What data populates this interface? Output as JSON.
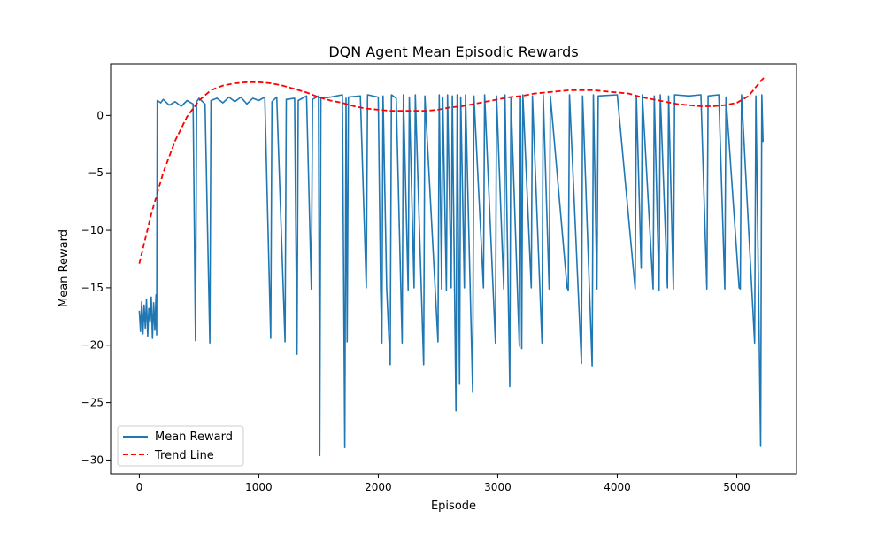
{
  "chart_data": {
    "type": "line",
    "title": "DQN Agent Mean Episodic Rewards",
    "xlabel": "Episode",
    "ylabel": "Mean Reward",
    "xlim": [
      -240,
      5500
    ],
    "ylim": [
      -31.2,
      4.5
    ],
    "xticks": [
      0,
      1000,
      2000,
      3000,
      4000,
      5000
    ],
    "yticks": [
      0,
      -5,
      -10,
      -15,
      -20,
      -25,
      -30
    ],
    "xtick_labels": [
      "0",
      "1000",
      "2000",
      "3000",
      "4000",
      "5000"
    ],
    "ytick_labels": [
      "0",
      "−5",
      "−10",
      "−15",
      "−20",
      "−25",
      "−30"
    ],
    "legend_position": "lower-left",
    "grid": false,
    "series": [
      {
        "name": "Mean Reward",
        "color": "#1f77b4",
        "style": "solid",
        "points": [
          [
            0,
            -17.0
          ],
          [
            10,
            -18.8
          ],
          [
            20,
            -16.2
          ],
          [
            30,
            -19.0
          ],
          [
            40,
            -16.5
          ],
          [
            50,
            -18.5
          ],
          [
            60,
            -16.0
          ],
          [
            70,
            -19.2
          ],
          [
            80,
            -16.8
          ],
          [
            90,
            -18.0
          ],
          [
            100,
            -15.8
          ],
          [
            110,
            -19.4
          ],
          [
            120,
            -16.3
          ],
          [
            130,
            -18.7
          ],
          [
            140,
            -15.6
          ],
          [
            145,
            -19.1
          ],
          [
            150,
            1.3
          ],
          [
            180,
            1.1
          ],
          [
            200,
            1.4
          ],
          [
            250,
            0.9
          ],
          [
            300,
            1.2
          ],
          [
            350,
            0.8
          ],
          [
            400,
            1.3
          ],
          [
            450,
            1.0
          ],
          [
            470,
            -19.6
          ],
          [
            480,
            1.2
          ],
          [
            500,
            1.5
          ],
          [
            550,
            1.0
          ],
          [
            590,
            -19.8
          ],
          [
            600,
            1.3
          ],
          [
            650,
            1.5
          ],
          [
            700,
            1.1
          ],
          [
            750,
            1.6
          ],
          [
            800,
            1.2
          ],
          [
            850,
            1.6
          ],
          [
            900,
            1.0
          ],
          [
            950,
            1.5
          ],
          [
            1000,
            1.3
          ],
          [
            1050,
            1.6
          ],
          [
            1100,
            -19.4
          ],
          [
            1110,
            1.2
          ],
          [
            1150,
            1.6
          ],
          [
            1220,
            -19.7
          ],
          [
            1230,
            1.4
          ],
          [
            1300,
            1.5
          ],
          [
            1320,
            -20.8
          ],
          [
            1330,
            1.3
          ],
          [
            1400,
            1.7
          ],
          [
            1440,
            -15.1
          ],
          [
            1450,
            1.4
          ],
          [
            1500,
            1.7
          ],
          [
            1510,
            -29.6
          ],
          [
            1520,
            1.5
          ],
          [
            1600,
            1.6
          ],
          [
            1700,
            1.8
          ],
          [
            1720,
            -28.9
          ],
          [
            1730,
            1.5
          ],
          [
            1740,
            -19.7
          ],
          [
            1750,
            1.6
          ],
          [
            1850,
            1.7
          ],
          [
            1900,
            -15.0
          ],
          [
            1910,
            1.8
          ],
          [
            2000,
            1.6
          ],
          [
            2020,
            -15.1
          ],
          [
            2030,
            -19.8
          ],
          [
            2040,
            1.7
          ],
          [
            2070,
            -15.0
          ],
          [
            2090,
            -19.6
          ],
          [
            2100,
            -21.7
          ],
          [
            2110,
            1.8
          ],
          [
            2150,
            1.5
          ],
          [
            2200,
            -19.8
          ],
          [
            2210,
            1.8
          ],
          [
            2250,
            -15.2
          ],
          [
            2260,
            1.6
          ],
          [
            2300,
            -15.0
          ],
          [
            2310,
            1.8
          ],
          [
            2380,
            -21.7
          ],
          [
            2390,
            1.7
          ],
          [
            2500,
            -19.7
          ],
          [
            2510,
            1.8
          ],
          [
            2530,
            -15.1
          ],
          [
            2540,
            1.6
          ],
          [
            2570,
            -15.2
          ],
          [
            2580,
            1.8
          ],
          [
            2610,
            -15.0
          ],
          [
            2620,
            1.7
          ],
          [
            2650,
            -25.7
          ],
          [
            2660,
            1.8
          ],
          [
            2680,
            -23.4
          ],
          [
            2690,
            1.6
          ],
          [
            2720,
            -15.0
          ],
          [
            2730,
            1.8
          ],
          [
            2790,
            -24.1
          ],
          [
            2800,
            1.7
          ],
          [
            2880,
            -15.0
          ],
          [
            2890,
            1.8
          ],
          [
            2980,
            -19.8
          ],
          [
            2990,
            1.7
          ],
          [
            3050,
            -15.1
          ],
          [
            3060,
            1.8
          ],
          [
            3100,
            -23.6
          ],
          [
            3110,
            1.6
          ],
          [
            3180,
            -20.1
          ],
          [
            3190,
            1.7
          ],
          [
            3200,
            -20.3
          ],
          [
            3210,
            1.8
          ],
          [
            3280,
            -15.0
          ],
          [
            3290,
            1.7
          ],
          [
            3370,
            -19.8
          ],
          [
            3380,
            1.8
          ],
          [
            3430,
            -15.1
          ],
          [
            3440,
            1.7
          ],
          [
            3580,
            -15.0
          ],
          [
            3590,
            -15.2
          ],
          [
            3600,
            1.8
          ],
          [
            3700,
            -21.6
          ],
          [
            3710,
            1.7
          ],
          [
            3790,
            -21.8
          ],
          [
            3800,
            1.8
          ],
          [
            3830,
            -15.1
          ],
          [
            3840,
            1.7
          ],
          [
            4000,
            1.8
          ],
          [
            4150,
            -15.1
          ],
          [
            4160,
            1.7
          ],
          [
            4200,
            -13.3
          ],
          [
            4210,
            1.8
          ],
          [
            4300,
            -15.1
          ],
          [
            4310,
            1.7
          ],
          [
            4350,
            -15.2
          ],
          [
            4360,
            1.8
          ],
          [
            4420,
            -15.0
          ],
          [
            4430,
            1.7
          ],
          [
            4470,
            -15.1
          ],
          [
            4480,
            1.8
          ],
          [
            4600,
            1.7
          ],
          [
            4700,
            1.8
          ],
          [
            4750,
            -15.1
          ],
          [
            4760,
            1.7
          ],
          [
            4850,
            1.8
          ],
          [
            4900,
            -15.1
          ],
          [
            4910,
            1.6
          ],
          [
            5020,
            -15.0
          ],
          [
            5030,
            -15.1
          ],
          [
            5040,
            1.8
          ],
          [
            5150,
            -19.8
          ],
          [
            5160,
            1.7
          ],
          [
            5200,
            -28.8
          ],
          [
            5210,
            1.8
          ],
          [
            5220,
            -2.3
          ]
        ]
      },
      {
        "name": "Trend Line",
        "color": "#ff0000",
        "style": "dashed",
        "points": [
          [
            0,
            -12.9
          ],
          [
            100,
            -8.6
          ],
          [
            200,
            -5.0
          ],
          [
            300,
            -2.2
          ],
          [
            400,
            -0.1
          ],
          [
            500,
            1.3
          ],
          [
            600,
            2.2
          ],
          [
            700,
            2.6
          ],
          [
            800,
            2.8
          ],
          [
            900,
            2.9
          ],
          [
            1000,
            2.9
          ],
          [
            1100,
            2.8
          ],
          [
            1200,
            2.6
          ],
          [
            1300,
            2.3
          ],
          [
            1400,
            2.0
          ],
          [
            1500,
            1.6
          ],
          [
            1600,
            1.3
          ],
          [
            1700,
            1.1
          ],
          [
            1800,
            0.8
          ],
          [
            1900,
            0.6
          ],
          [
            2000,
            0.5
          ],
          [
            2100,
            0.4
          ],
          [
            2200,
            0.4
          ],
          [
            2300,
            0.4
          ],
          [
            2400,
            0.4
          ],
          [
            2500,
            0.5
          ],
          [
            2600,
            0.7
          ],
          [
            2700,
            0.8
          ],
          [
            2800,
            1.0
          ],
          [
            2900,
            1.2
          ],
          [
            3000,
            1.4
          ],
          [
            3100,
            1.6
          ],
          [
            3200,
            1.7
          ],
          [
            3300,
            1.9
          ],
          [
            3400,
            2.0
          ],
          [
            3500,
            2.1
          ],
          [
            3600,
            2.2
          ],
          [
            3700,
            2.2
          ],
          [
            3800,
            2.2
          ],
          [
            3900,
            2.1
          ],
          [
            4000,
            2.0
          ],
          [
            4100,
            1.9
          ],
          [
            4200,
            1.6
          ],
          [
            4300,
            1.4
          ],
          [
            4400,
            1.2
          ],
          [
            4500,
            1.0
          ],
          [
            4600,
            0.9
          ],
          [
            4700,
            0.8
          ],
          [
            4800,
            0.8
          ],
          [
            4900,
            0.9
          ],
          [
            5000,
            1.1
          ],
          [
            5100,
            1.7
          ],
          [
            5200,
            3.0
          ],
          [
            5230,
            3.3
          ]
        ]
      }
    ]
  }
}
